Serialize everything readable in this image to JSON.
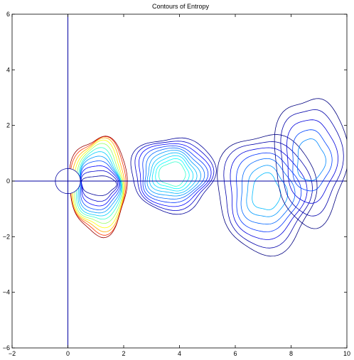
{
  "chart_data": {
    "type": "contour",
    "title": "Contours of Entropy",
    "xlabel": "",
    "ylabel": "",
    "xlim": [
      -2,
      10
    ],
    "ylim": [
      -6,
      6
    ],
    "x_ticks": [
      -2,
      0,
      2,
      4,
      6,
      8,
      10
    ],
    "y_ticks": [
      -6,
      -4,
      -2,
      0,
      2,
      4,
      6
    ],
    "x_tick_labels": [
      "−2",
      "0",
      "2",
      "4",
      "6",
      "8",
      "10"
    ],
    "y_tick_labels": [
      "−6",
      "−4",
      "−2",
      "0",
      "2",
      "4",
      "6"
    ],
    "grid": false,
    "reference_lines": [
      {
        "orientation": "vertical",
        "x": 0
      },
      {
        "orientation": "horizontal",
        "y": 0
      }
    ],
    "cylinder": {
      "center": [
        0,
        0
      ],
      "radius": 0.45
    },
    "colormap": [
      "#00008f",
      "#0000ff",
      "#007fff",
      "#00ffff",
      "#7fff7f",
      "#ffff00",
      "#ff7f00",
      "#ff0000",
      "#7f0000"
    ],
    "line_color": "#0000a0",
    "contour_families": [
      {
        "name": "cylinder-wake",
        "center": [
          1.1,
          -0.15
        ],
        "levels": [
          [
            0.62,
            0.35,
            "#000099"
          ],
          [
            0.64,
            0.55,
            "#0000cc"
          ],
          [
            0.67,
            0.72,
            "#0000ff"
          ],
          [
            0.7,
            0.88,
            "#004cff"
          ],
          [
            0.73,
            1.02,
            "#0099ff"
          ],
          [
            0.76,
            1.15,
            "#00ccff"
          ],
          [
            0.8,
            1.27,
            "#33ffcc"
          ],
          [
            0.85,
            1.4,
            "#99ff66"
          ],
          [
            0.9,
            1.52,
            "#ffff00"
          ],
          [
            0.95,
            1.62,
            "#ffaa00"
          ],
          [
            1.0,
            1.7,
            "#ff3300"
          ],
          [
            1.03,
            1.76,
            "#990000"
          ]
        ]
      },
      {
        "name": "vortex-2",
        "center": [
          3.75,
          0.25
        ],
        "levels": [
          [
            1.5,
            1.35,
            "#000099"
          ],
          [
            1.38,
            1.24,
            "#0000cc"
          ],
          [
            1.27,
            1.13,
            "#0000ff"
          ],
          [
            1.16,
            1.02,
            "#0033ff"
          ],
          [
            1.05,
            0.92,
            "#0066ff"
          ],
          [
            0.94,
            0.82,
            "#0099ff"
          ],
          [
            0.83,
            0.72,
            "#00bbff"
          ],
          [
            0.72,
            0.62,
            "#00ddff"
          ],
          [
            0.6,
            0.52,
            "#00ffff"
          ],
          [
            0.48,
            0.42,
            "#33ffcc"
          ]
        ]
      },
      {
        "name": "vortex-3",
        "center": [
          7.1,
          -0.4
        ],
        "levels": [
          [
            1.75,
            2.15,
            "#000080"
          ],
          [
            1.55,
            1.9,
            "#0000aa"
          ],
          [
            1.35,
            1.65,
            "#0000dd"
          ],
          [
            1.15,
            1.42,
            "#0033ff"
          ],
          [
            0.95,
            1.18,
            "#0066ff"
          ],
          [
            0.72,
            0.92,
            "#0099ff"
          ],
          [
            0.5,
            0.66,
            "#00bbff"
          ]
        ]
      },
      {
        "name": "vortex-4",
        "center": [
          8.7,
          0.75
        ],
        "levels": [
          [
            1.3,
            2.3,
            "#000080"
          ],
          [
            1.1,
            1.9,
            "#0000aa"
          ],
          [
            0.9,
            1.5,
            "#0000dd"
          ],
          [
            0.7,
            1.1,
            "#0044ff"
          ],
          [
            0.5,
            0.75,
            "#0088ff"
          ]
        ]
      }
    ]
  }
}
